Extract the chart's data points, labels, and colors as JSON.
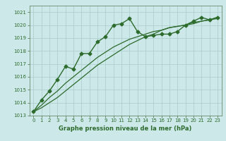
{
  "title": "",
  "xlabel": "Graphe pression niveau de la mer (hPa)",
  "background_color": "#cce8e8",
  "grid_color": "#aacccc",
  "line_color": "#2d6b2d",
  "xlim": [
    -0.5,
    23.5
  ],
  "ylim": [
    1013.0,
    1021.5
  ],
  "yticks": [
    1013,
    1014,
    1015,
    1016,
    1017,
    1018,
    1019,
    1020,
    1021
  ],
  "xticks": [
    0,
    1,
    2,
    3,
    4,
    5,
    6,
    7,
    8,
    9,
    10,
    11,
    12,
    13,
    14,
    15,
    16,
    17,
    18,
    19,
    20,
    21,
    22,
    23
  ],
  "series": [
    {
      "x": [
        0,
        1,
        2,
        3,
        4,
        5,
        6,
        7,
        8,
        9,
        10,
        11,
        12,
        13,
        14,
        15,
        16,
        17,
        18,
        19,
        20,
        21,
        22,
        23
      ],
      "y": [
        1013.3,
        1014.2,
        1014.9,
        1015.8,
        1016.8,
        1016.6,
        1017.8,
        1017.8,
        1018.7,
        1019.1,
        1020.0,
        1020.1,
        1020.5,
        1019.5,
        1019.1,
        1019.2,
        1019.3,
        1019.3,
        1019.5,
        1020.0,
        1020.3,
        1020.6,
        1020.4,
        1020.6
      ],
      "marker": "D",
      "markersize": 2.5,
      "linewidth": 1.0,
      "linestyle": "-"
    },
    {
      "x": [
        0,
        1,
        2,
        3,
        4,
        5,
        6,
        7,
        8,
        9,
        10,
        11,
        12,
        13,
        14,
        15,
        16,
        17,
        18,
        19,
        20,
        21,
        22,
        23
      ],
      "y": [
        1013.3,
        1013.8,
        1014.4,
        1014.9,
        1015.5,
        1016.0,
        1016.5,
        1017.0,
        1017.5,
        1017.9,
        1018.3,
        1018.6,
        1018.9,
        1019.1,
        1019.3,
        1019.5,
        1019.6,
        1019.8,
        1019.9,
        1020.0,
        1020.1,
        1020.3,
        1020.4,
        1020.5
      ],
      "marker": null,
      "markersize": 0,
      "linewidth": 0.9,
      "linestyle": "-"
    },
    {
      "x": [
        0,
        1,
        2,
        3,
        4,
        5,
        6,
        7,
        8,
        9,
        10,
        11,
        12,
        13,
        14,
        15,
        16,
        17,
        18,
        19,
        20,
        21,
        22,
        23
      ],
      "y": [
        1013.3,
        1013.6,
        1014.0,
        1014.4,
        1014.9,
        1015.4,
        1015.9,
        1016.4,
        1016.9,
        1017.3,
        1017.7,
        1018.1,
        1018.5,
        1018.8,
        1019.1,
        1019.3,
        1019.6,
        1019.8,
        1019.9,
        1020.0,
        1020.2,
        1020.3,
        1020.4,
        1020.6
      ],
      "marker": null,
      "markersize": 0,
      "linewidth": 0.9,
      "linestyle": "-"
    }
  ]
}
